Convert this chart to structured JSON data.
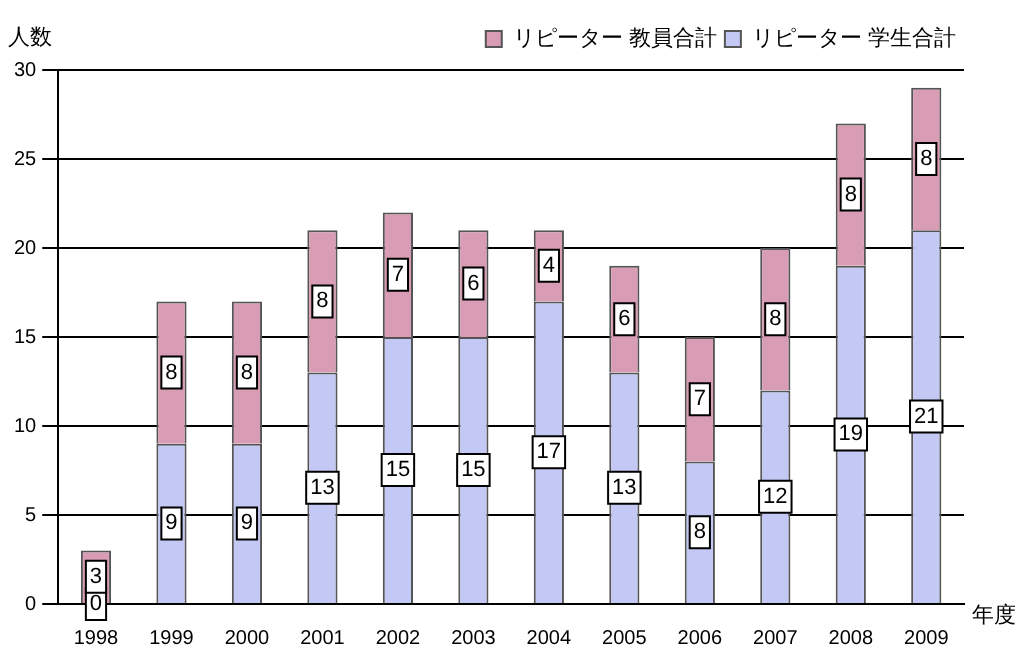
{
  "chart_data": {
    "type": "bar",
    "stacked": true,
    "ylabel": "人数",
    "xlabel": "年度",
    "categories": [
      "1998",
      "1999",
      "2000",
      "2001",
      "2002",
      "2003",
      "2004",
      "2005",
      "2006",
      "2007",
      "2008",
      "2009"
    ],
    "series": [
      {
        "name": "リピーター 学生合計",
        "color": "#c4c8f4",
        "values": [
          0,
          9,
          9,
          13,
          15,
          15,
          17,
          13,
          8,
          12,
          19,
          21
        ]
      },
      {
        "name": "リピーター 教員合計",
        "color": "#d89cb4",
        "values": [
          3,
          8,
          8,
          8,
          7,
          6,
          4,
          6,
          7,
          8,
          8,
          8
        ]
      }
    ],
    "ylim": [
      0,
      30
    ],
    "yticks": [
      0,
      5,
      10,
      15,
      20,
      25,
      30
    ],
    "grid": "y",
    "legend": "top right",
    "data_labels": true
  }
}
